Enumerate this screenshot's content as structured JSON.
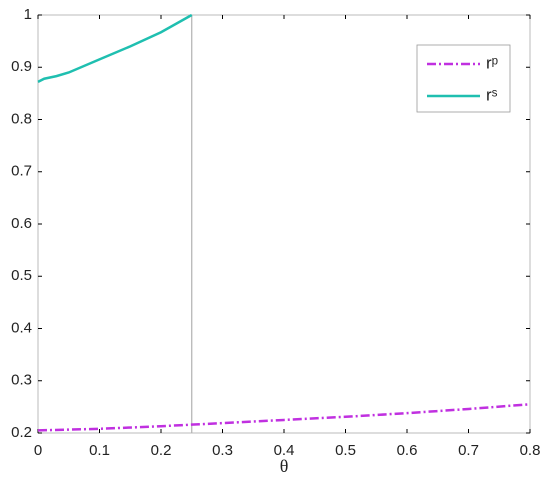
{
  "chart_data": {
    "type": "line",
    "x_label": "θ",
    "xlim": [
      0,
      0.8
    ],
    "xticks": [
      0,
      0.1,
      0.2,
      0.3,
      0.4,
      0.5,
      0.6,
      0.7,
      0.8
    ],
    "ylim": [
      0.2,
      1
    ],
    "yticks": [
      0.2,
      0.3,
      0.4,
      0.5,
      0.6,
      0.7,
      0.8,
      0.9,
      1
    ],
    "vline": 0.25,
    "vline_color": "#b0b0b0",
    "legend": "upper right",
    "series": [
      {
        "name": "rᵖ",
        "color": "#c030e0",
        "style": "dashdot",
        "x": [
          0,
          0.1,
          0.2,
          0.3,
          0.4,
          0.5,
          0.6,
          0.7,
          0.8
        ],
        "values": [
          0.205,
          0.208,
          0.213,
          0.219,
          0.225,
          0.231,
          0.238,
          0.246,
          0.255
        ]
      },
      {
        "name": "rˢ",
        "color": "#1fbfb0",
        "style": "solid",
        "x": [
          0,
          0.01,
          0.03,
          0.05,
          0.1,
          0.15,
          0.2,
          0.25
        ],
        "values": [
          0.872,
          0.878,
          0.883,
          0.89,
          0.915,
          0.94,
          0.967,
          1
        ]
      }
    ]
  }
}
